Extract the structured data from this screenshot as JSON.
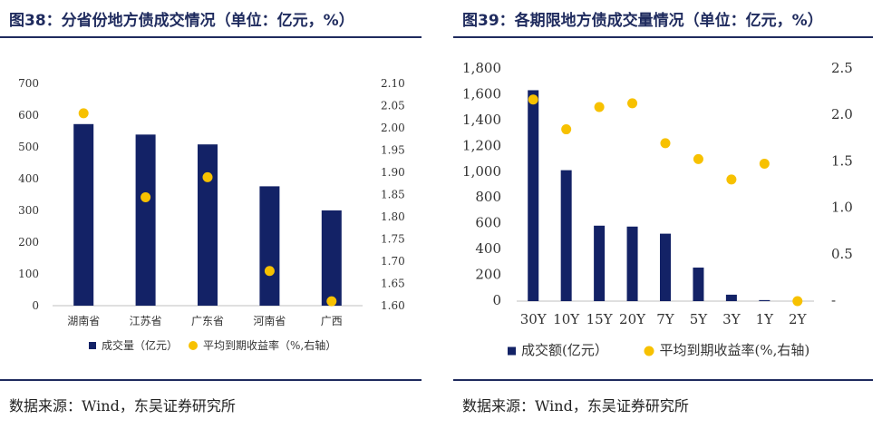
{
  "colors": {
    "bar": "#132266",
    "dot": "#f7c100",
    "rule": "#1f2b5e",
    "axis": "#bfbfbf"
  },
  "left": {
    "title": "图38：分省份地方债成交情况（单位：亿元，%）",
    "source": "数据来源：Wind，东吴证券研究所",
    "chart_data": {
      "type": "bar",
      "categories": [
        "湖南省",
        "江苏省",
        "广东省",
        "河南省",
        "广西"
      ],
      "series": [
        {
          "name": "成交量（亿元）",
          "axis": "left",
          "kind": "bar",
          "values": [
            572,
            539,
            508,
            376,
            300
          ]
        },
        {
          "name": "平均到期收益率（%,右轴）",
          "axis": "right",
          "kind": "scatter",
          "values": [
            2.033,
            1.844,
            1.889,
            1.678,
            1.61
          ]
        }
      ],
      "y_left": {
        "min": 0,
        "max": 700,
        "ticks": [
          "0",
          "100",
          "200",
          "300",
          "400",
          "500",
          "600",
          "700"
        ]
      },
      "y_right": {
        "min": 1.6,
        "max": 2.1,
        "ticks": [
          "1.60",
          "1.65",
          "1.70",
          "1.75",
          "1.80",
          "1.85",
          "1.90",
          "1.95",
          "2.00",
          "2.05",
          "2.10"
        ]
      },
      "legend": [
        "成交量（亿元）",
        "平均到期收益率（%,右轴）"
      ]
    }
  },
  "right": {
    "title": "图39：各期限地方债成交量情况（单位：亿元，%）",
    "source": "数据来源：Wind，东吴证券研究所",
    "chart_data": {
      "type": "bar",
      "categories": [
        "30Y",
        "10Y",
        "15Y",
        "20Y",
        "7Y",
        "5Y",
        "3Y",
        "1Y",
        "2Y"
      ],
      "series": [
        {
          "name": "成交额(亿元）",
          "axis": "left",
          "kind": "bar",
          "values": [
            1635,
            1015,
            585,
            578,
            523,
            260,
            50,
            8,
            0
          ]
        },
        {
          "name": "平均到期收益率(%,右轴)",
          "axis": "right",
          "kind": "scatter",
          "values": [
            2.17,
            1.85,
            2.09,
            2.13,
            1.7,
            1.53,
            1.31,
            1.48,
            0.0
          ]
        }
      ],
      "y_left": {
        "min": 0,
        "max": 1800,
        "ticks": [
          "0",
          "200",
          "400",
          "600",
          "800",
          "1,000",
          "1,200",
          "1,400",
          "1,600",
          "1,800"
        ]
      },
      "y_right": {
        "min": 0,
        "max": 2.5,
        "ticks": [
          "-",
          "0.5",
          "1.0",
          "1.5",
          "2.0",
          "2.5"
        ]
      },
      "legend": [
        "成交额(亿元）",
        "平均到期收益率(%,右轴)"
      ]
    }
  }
}
